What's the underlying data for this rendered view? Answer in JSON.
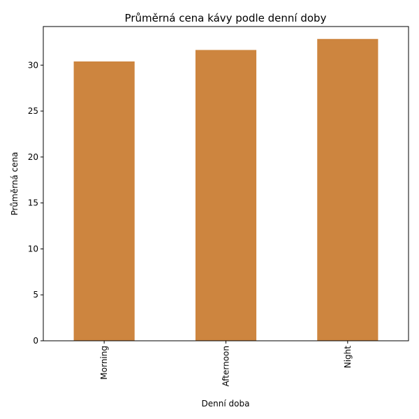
{
  "chart_data": {
    "type": "bar",
    "title": "Průměrná cena kávy podle denní doby",
    "xlabel": "Denní doba",
    "ylabel": "Průměrná cena",
    "categories": [
      "Morning",
      "Afternoon",
      "Night"
    ],
    "values": [
      30.4,
      31.65,
      32.85
    ],
    "ylim": [
      0,
      34.2
    ],
    "yticks": [
      0,
      5,
      10,
      15,
      20,
      25,
      30
    ],
    "bar_color": "#cd853f",
    "grid": false,
    "legend": "none"
  }
}
